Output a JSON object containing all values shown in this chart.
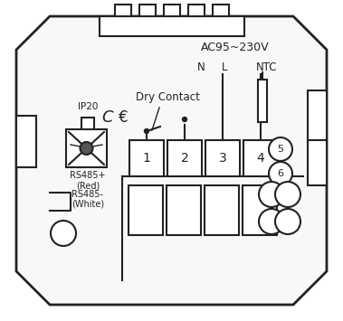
{
  "bg_color": "#ffffff",
  "outline_color": "#222222",
  "title": "AC95~230V",
  "label_N": "N",
  "label_L": "L",
  "label_NTC": "NTC",
  "label_dry_contact": "Dry Contact",
  "label_ip20": "IP20",
  "label_rs485_plus": "RS485+",
  "label_red": "(Red)",
  "label_rs485_minus": "RS485-",
  "label_white": "(White)",
  "terminal_labels": [
    "1",
    "2",
    "3",
    "4"
  ],
  "circle_labels": [
    "5",
    "6"
  ],
  "fig_width": 3.79,
  "fig_height": 3.55,
  "dpi": 100
}
